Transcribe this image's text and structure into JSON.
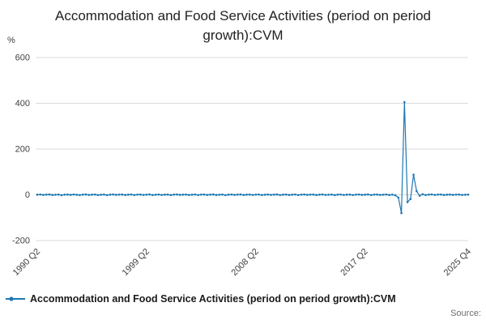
{
  "chart": {
    "title": "Accommodation and Food Service Activities (period on period growth):CVM",
    "y_unit": "%",
    "legend_label": "Accommodation and Food Service Activities (period on period growth):CVM",
    "source_label": "Source:",
    "colors": {
      "line": "#1f77b4",
      "grid": "#d9d9d9",
      "tick_text": "#414042",
      "title_text": "#222222",
      "legend_text": "#1a1a1a",
      "source_text": "#6e6e6e"
    }
  },
  "chart_data": {
    "type": "line",
    "title": "Accommodation and Food Service Activities (period on period growth):CVM",
    "xlabel": "",
    "ylabel": "%",
    "frequency": "quarterly",
    "x_start": "1990 Q2",
    "x_end": "2025 Q4",
    "ylim": [
      -200,
      600
    ],
    "y_ticks": [
      -200,
      0,
      200,
      400,
      600
    ],
    "grid": "horizontal",
    "legend_position": "bottom-left",
    "x_tick_labels": [
      {
        "label": "1990 Q2",
        "index": 0
      },
      {
        "label": "1999 Q2",
        "index": 36
      },
      {
        "label": "2008 Q2",
        "index": 72
      },
      {
        "label": "2017 Q2",
        "index": 108
      },
      {
        "label": "2025 Q4",
        "index": 142
      }
    ],
    "series": [
      {
        "name": "Accommodation and Food Service Activities (period on period growth):CVM",
        "values": [
          0.6,
          1.2,
          -0.5,
          0.9,
          1.4,
          -0.8,
          0.3,
          1.1,
          -1.6,
          0.7,
          1.0,
          -0.4,
          1.3,
          0.2,
          -1.0,
          0.8,
          1.5,
          -0.6,
          0.5,
          1.2,
          -0.9,
          0.4,
          1.0,
          -1.4,
          0.6,
          1.7,
          -0.3,
          0.9,
          1.1,
          -0.7,
          0.5,
          1.3,
          -1.1,
          0.8,
          1.0,
          -0.5,
          0.7,
          1.4,
          -0.9,
          0.3,
          1.2,
          -0.6,
          0.5,
          1.0,
          -1.2,
          0.9,
          1.5,
          -0.4,
          0.6,
          1.1,
          -0.8,
          0.4,
          1.3,
          -1.0,
          0.7,
          1.2,
          -0.5,
          0.8,
          1.4,
          -0.7,
          0.3,
          1.0,
          -1.3,
          0.6,
          1.2,
          -0.4,
          0.9,
          1.5,
          -0.8,
          0.5,
          1.1,
          -0.6,
          0.7,
          1.3,
          -1.0,
          0.4,
          1.2,
          -0.5,
          0.8,
          1.4,
          -0.9,
          0.6,
          1.0,
          -0.7,
          0.5,
          1.3,
          -1.1,
          0.7,
          1.2,
          -0.4,
          0.9,
          1.1,
          -0.8,
          0.6,
          1.4,
          -0.5,
          0.3,
          1.0,
          -1.2,
          0.8,
          1.3,
          -0.6,
          0.5,
          1.1,
          -0.9,
          0.7,
          1.2,
          -0.4,
          0.6,
          1.4,
          -1.0,
          0.8,
          1.1,
          -0.5,
          0.4,
          1.2,
          -0.8,
          0.9,
          -2.2,
          -12,
          -80,
          405,
          -32,
          -18,
          88,
          16,
          -4,
          2.5,
          -1.0,
          0.8,
          1.5,
          -0.6,
          0.9,
          1.2,
          -0.8,
          0.5,
          1.0,
          -0.4,
          0.7,
          1.1,
          -0.6,
          0.4,
          0.8
        ]
      }
    ]
  }
}
